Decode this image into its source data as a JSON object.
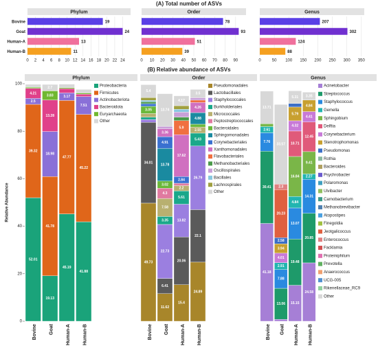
{
  "figure_titles": [
    "(A) Total number of ASVs",
    "(B) Relative abundance of ASVs"
  ],
  "chart_data": [
    {
      "type": "hbar",
      "title": "Phylum",
      "categories": [
        "Bovine",
        "Goat",
        "Human-A",
        "Human-B"
      ],
      "colors": [
        "#5a3fe6",
        "#7030d0",
        "#f0709c",
        "#f5a020"
      ],
      "values": [
        19,
        24,
        13,
        11
      ],
      "xlim": [
        0,
        26
      ],
      "xticks": [
        0,
        2,
        4,
        6,
        8,
        10,
        12,
        14,
        16,
        18,
        20,
        22,
        24
      ],
      "grid": true
    },
    {
      "type": "hbar",
      "title": "Order",
      "colors": [
        "#5a3fe6",
        "#7030d0",
        "#f0709c",
        "#f5a020"
      ],
      "values": [
        78,
        93,
        51,
        39
      ],
      "xlim": [
        0,
        100
      ],
      "xticks": [
        0,
        10,
        20,
        30,
        40,
        50,
        60,
        70,
        80,
        90
      ],
      "grid": true
    },
    {
      "type": "hbar",
      "title": "Genus",
      "colors": [
        "#5a3fe6",
        "#7030d0",
        "#f0709c",
        "#f5a020"
      ],
      "values": [
        207,
        302,
        124,
        88
      ],
      "xlim": [
        0,
        360
      ],
      "xticks": [
        0,
        50,
        100,
        150,
        200,
        250,
        300,
        350
      ],
      "grid": true
    },
    {
      "type": "stacked_bar",
      "title": "Phylum",
      "categories": [
        "Bovine",
        "Goat",
        "Human-A",
        "Human-B"
      ],
      "ylim": [
        0,
        100
      ],
      "yticks": [
        0,
        20,
        40,
        60,
        80,
        100
      ],
      "ylabel": "Relative Abundance",
      "series": [
        {
          "name": "Proteobacteria",
          "color": "#1aa37a",
          "values": [
            52.01,
            19.13,
            45.19,
            41.88
          ]
        },
        {
          "name": "Firmicutes",
          "color": "#e0661a",
          "values": [
            39.32,
            41.78,
            47.77,
            45.22
          ]
        },
        {
          "name": "Actinobacteriota",
          "color": "#8a70d8",
          "values": [
            2.5,
            18.98,
            3.17,
            7.51
          ]
        },
        {
          "name": "Bacteroidota",
          "color": "#e0408a",
          "values": [
            4.21,
            13.28,
            1.8,
            1.0
          ]
        },
        {
          "name": "Euryarchaeota",
          "color": "#70b830",
          "values": [
            0.5,
            3.83,
            0.4,
            0.5
          ]
        },
        {
          "name": "Other",
          "color": "#d8d8d8",
          "values": [
            1.2,
            2.7,
            1.5,
            1.5
          ]
        }
      ]
    },
    {
      "type": "stacked_bar",
      "title": "Order",
      "categories": [
        "Bovine",
        "Goat",
        "Human-A",
        "Human-B"
      ],
      "ylim": [
        0,
        100
      ],
      "series": [
        {
          "name": "Pseudomonadales",
          "color": "#a8862a",
          "values": [
            49.73,
            11.62,
            15.4,
            24.89
          ]
        },
        {
          "name": "Lactobacillales",
          "color": "#5a5a5a",
          "values": [
            34.01,
            6.41,
            20.06,
            22.1
          ]
        },
        {
          "name": "Staphylococcales",
          "color": "#9b7fe0",
          "values": [
            1.2,
            22.73,
            13.82,
            26.79
          ]
        },
        {
          "name": "Burkholderiales",
          "color": "#1aa88a",
          "values": [
            1.0,
            3.35,
            5.61,
            5.43
          ]
        },
        {
          "name": "Micrococcales",
          "color": "#b8b070",
          "values": [
            1.5,
            7.58,
            2.2,
            2.55
          ]
        },
        {
          "name": "Peptostreptococcales",
          "color": "#e07aa0",
          "values": [
            null,
            4.3,
            1.0,
            null
          ]
        },
        {
          "name": "Bacteroidales",
          "color": "#6ab83a",
          "values": [
            3.05,
            3.02,
            null,
            1.2
          ]
        },
        {
          "name": "Sphingomonadales",
          "color": "#1a8aa0",
          "values": [
            null,
            13.78,
            null,
            4.88
          ]
        },
        {
          "name": "Corynebacteriales",
          "color": "#3a70d0",
          "values": [
            1.1,
            4.91,
            2.84,
            null
          ]
        },
        {
          "name": "Xanthomonadales",
          "color": "#d070c0",
          "values": [
            null,
            3.36,
            17.62,
            4.26
          ]
        },
        {
          "name": "Flavobacteriales",
          "color": "#f07040",
          "values": [
            null,
            null,
            5.9,
            1.0
          ]
        },
        {
          "name": "Methanobacteriales",
          "color": "#4a9a4a",
          "values": [
            0.8,
            null,
            1.5,
            null
          ]
        },
        {
          "name": "Oscillospirales",
          "color": "#c8a0d8",
          "values": [
            null,
            1.0,
            2.1,
            1.0
          ]
        },
        {
          "name": "Bacillales",
          "color": "#88c8e0",
          "values": [
            0.6,
            null,
            1.2,
            null
          ]
        },
        {
          "name": "Lachnospirales",
          "color": "#a0a040",
          "values": [
            1.2,
            null,
            1.5,
            null
          ]
        },
        {
          "name": "Other",
          "color": "#d8d8d8",
          "values": [
            5.4,
            13.74,
            4.17,
            3.5
          ]
        }
      ]
    },
    {
      "type": "stacked_bar",
      "title": "Genus",
      "categories": [
        "Bovine",
        "Goat",
        "Human-A",
        "Human-B"
      ],
      "ylim": [
        0,
        100
      ],
      "series": [
        {
          "name": "Acinetobacter",
          "color": "#a67fd6",
          "values": [
            41.18,
            0.8,
            15.15,
            24.58
          ]
        },
        {
          "name": "Streptococcus",
          "color": "#1e9a6a",
          "values": [
            30.41,
            13.06,
            19.48,
            20.85
          ]
        },
        {
          "name": "Staphylococcus",
          "color": "#2a8ae0",
          "values": [
            7.76,
            7.88,
            13.07,
            14.31
          ]
        },
        {
          "name": "Gemella",
          "color": "#22b5b0",
          "values": [
            2.61,
            2.91,
            4.84,
            2.27
          ]
        },
        {
          "name": "Sphingobium",
          "color": "#7ab648",
          "values": [
            1.2,
            null,
            16.84,
            9.41
          ]
        },
        {
          "name": "Delftia",
          "color": "#e05a7a",
          "values": [
            null,
            null,
            10.71,
            12.45
          ]
        },
        {
          "name": "Corynebacterium",
          "color": "#c87ad8",
          "values": [
            null,
            4.01,
            4.32,
            4.41
          ]
        },
        {
          "name": "Stenotrophomonas",
          "color": "#c8a030",
          "values": [
            null,
            3.94,
            5.79,
            4.84
          ]
        },
        {
          "name": "Pseudomonas",
          "color": "#3b6fc8",
          "values": [
            null,
            2.58,
            1.5,
            null
          ]
        },
        {
          "name": "Rothia",
          "color": "#8ab8a0",
          "values": [
            null,
            null,
            null,
            null
          ]
        },
        {
          "name": "Bacteroides",
          "color": "#b0a060",
          "values": [
            null,
            null,
            null,
            null
          ]
        },
        {
          "name": "Psychrobacter",
          "color": "#6a5acd",
          "values": [
            null,
            null,
            null,
            null
          ]
        },
        {
          "name": "Polaromonas",
          "color": "#40a0c0",
          "values": [
            null,
            null,
            null,
            null
          ]
        },
        {
          "name": "Ulvibacter",
          "color": "#90c060",
          "values": [
            null,
            null,
            null,
            null
          ]
        },
        {
          "name": "Carnobacterium",
          "color": "#3a9a8a",
          "values": [
            null,
            null,
            null,
            null
          ]
        },
        {
          "name": "Methanobrevibacter",
          "color": "#5080b0",
          "values": [
            null,
            null,
            null,
            null
          ]
        },
        {
          "name": "Atopostipes",
          "color": "#4aa0e0",
          "values": [
            null,
            null,
            null,
            null
          ]
        },
        {
          "name": "Finegoldia",
          "color": "#a0c040",
          "values": [
            null,
            null,
            null,
            null
          ]
        },
        {
          "name": "Jeotgalicoccus",
          "color": "#e06040",
          "values": [
            null,
            20.23,
            null,
            null
          ]
        },
        {
          "name": "Enterococcus",
          "color": "#e08080",
          "values": [
            null,
            2.3,
            null,
            null
          ]
        },
        {
          "name": "Facklamia",
          "color": "#d05050",
          "values": [
            null,
            null,
            null,
            null
          ]
        },
        {
          "name": "Proteiniphilum",
          "color": "#e070b0",
          "values": [
            null,
            null,
            null,
            null
          ]
        },
        {
          "name": "Prevotella",
          "color": "#60b060",
          "values": [
            null,
            null,
            null,
            null
          ]
        },
        {
          "name": "Anaerococcus",
          "color": "#f0a070",
          "values": [
            null,
            null,
            null,
            null
          ]
        },
        {
          "name": "UCG-005",
          "color": "#5090d0",
          "values": [
            null,
            null,
            null,
            null
          ]
        },
        {
          "name": "Rikenellaceae_RC9",
          "color": "#90d0a0",
          "values": [
            null,
            null,
            null,
            null
          ]
        },
        {
          "name": "Other",
          "color": "#d8d8d8",
          "values": [
            13.71,
            33.57,
            5.31,
            3.35
          ]
        }
      ]
    }
  ]
}
